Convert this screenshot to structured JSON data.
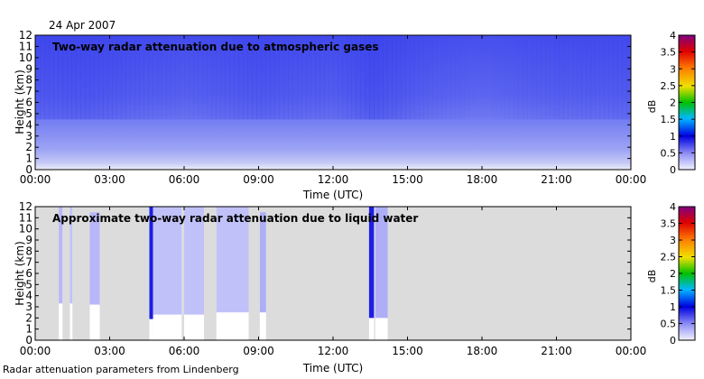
{
  "date_label": "24 Apr 2007",
  "footer": "Radar attenuation parameters from Lindenberg",
  "chart_data": [
    {
      "type": "heatmap",
      "title": "Two-way radar attenuation due to atmospheric gases",
      "xlabel": "Time (UTC)",
      "ylabel": "Height (km)",
      "x_ticks": [
        "00:00",
        "03:00",
        "06:00",
        "09:00",
        "12:00",
        "15:00",
        "18:00",
        "21:00",
        "00:00"
      ],
      "xlim_hours": [
        0,
        24
      ],
      "y_ticks": [
        0,
        1,
        2,
        3,
        4,
        5,
        6,
        7,
        8,
        9,
        10,
        11,
        12
      ],
      "ylim": [
        0,
        12
      ],
      "colorbar": {
        "label": "dB",
        "ticks": [
          0,
          0.5,
          1,
          1.5,
          2,
          2.5,
          3,
          3.5,
          4
        ],
        "range": [
          0,
          4
        ]
      },
      "columnar_attenuation_db": [
        {
          "hour": 0,
          "value": 0.95
        },
        {
          "hour": 2,
          "value": 0.97
        },
        {
          "hour": 4,
          "value": 0.92
        },
        {
          "hour": 6,
          "value": 0.88
        },
        {
          "hour": 9,
          "value": 0.95
        },
        {
          "hour": 12,
          "value": 0.9
        },
        {
          "hour": 13.6,
          "value": 1.0
        },
        {
          "hour": 16,
          "value": 0.88
        },
        {
          "hour": 18,
          "value": 0.83
        },
        {
          "hour": 21,
          "value": 0.9
        },
        {
          "hour": 24,
          "value": 0.92
        }
      ]
    },
    {
      "type": "heatmap",
      "title": "Approximate two-way radar attenuation due to liquid water",
      "xlabel": "Time (UTC)",
      "ylabel": "Height (km)",
      "x_ticks": [
        "00:00",
        "03:00",
        "06:00",
        "09:00",
        "12:00",
        "15:00",
        "18:00",
        "21:00",
        "00:00"
      ],
      "xlim_hours": [
        0,
        24
      ],
      "y_ticks": [
        0,
        1,
        2,
        3,
        4,
        5,
        6,
        7,
        8,
        9,
        10,
        11,
        12
      ],
      "ylim": [
        0,
        12
      ],
      "colorbar": {
        "label": "dB",
        "ticks": [
          0,
          0.5,
          1,
          1.5,
          2,
          2.5,
          3,
          3.5,
          4
        ],
        "range": [
          0,
          4
        ]
      },
      "background": "no data (grey)",
      "precipitation_events": [
        {
          "start_hour": 0.95,
          "end_hour": 1.1,
          "base_km": 3.3,
          "top_km": 12,
          "value_db": 0.3
        },
        {
          "start_hour": 1.4,
          "end_hour": 1.5,
          "base_km": 3.3,
          "top_km": 12,
          "value_db": 0.25
        },
        {
          "start_hour": 2.2,
          "end_hour": 2.6,
          "base_km": 3.2,
          "top_km": 11.5,
          "value_db": 0.3
        },
        {
          "start_hour": 4.6,
          "end_hour": 4.75,
          "base_km": 1.9,
          "top_km": 12,
          "value_db": 0.9
        },
        {
          "start_hour": 4.75,
          "end_hour": 5.9,
          "base_km": 2.3,
          "top_km": 12,
          "value_db": 0.25
        },
        {
          "start_hour": 6.0,
          "end_hour": 6.8,
          "base_km": 2.3,
          "top_km": 12,
          "value_db": 0.25
        },
        {
          "start_hour": 7.3,
          "end_hour": 8.6,
          "base_km": 2.5,
          "top_km": 12,
          "value_db": 0.25
        },
        {
          "start_hour": 9.05,
          "end_hour": 9.3,
          "base_km": 2.5,
          "top_km": 11.5,
          "value_db": 0.35
        },
        {
          "start_hour": 13.45,
          "end_hour": 13.65,
          "base_km": 2.0,
          "top_km": 12,
          "value_db": 0.9
        },
        {
          "start_hour": 13.7,
          "end_hour": 14.2,
          "base_km": 2.0,
          "top_km": 12,
          "value_db": 0.35
        }
      ]
    }
  ]
}
